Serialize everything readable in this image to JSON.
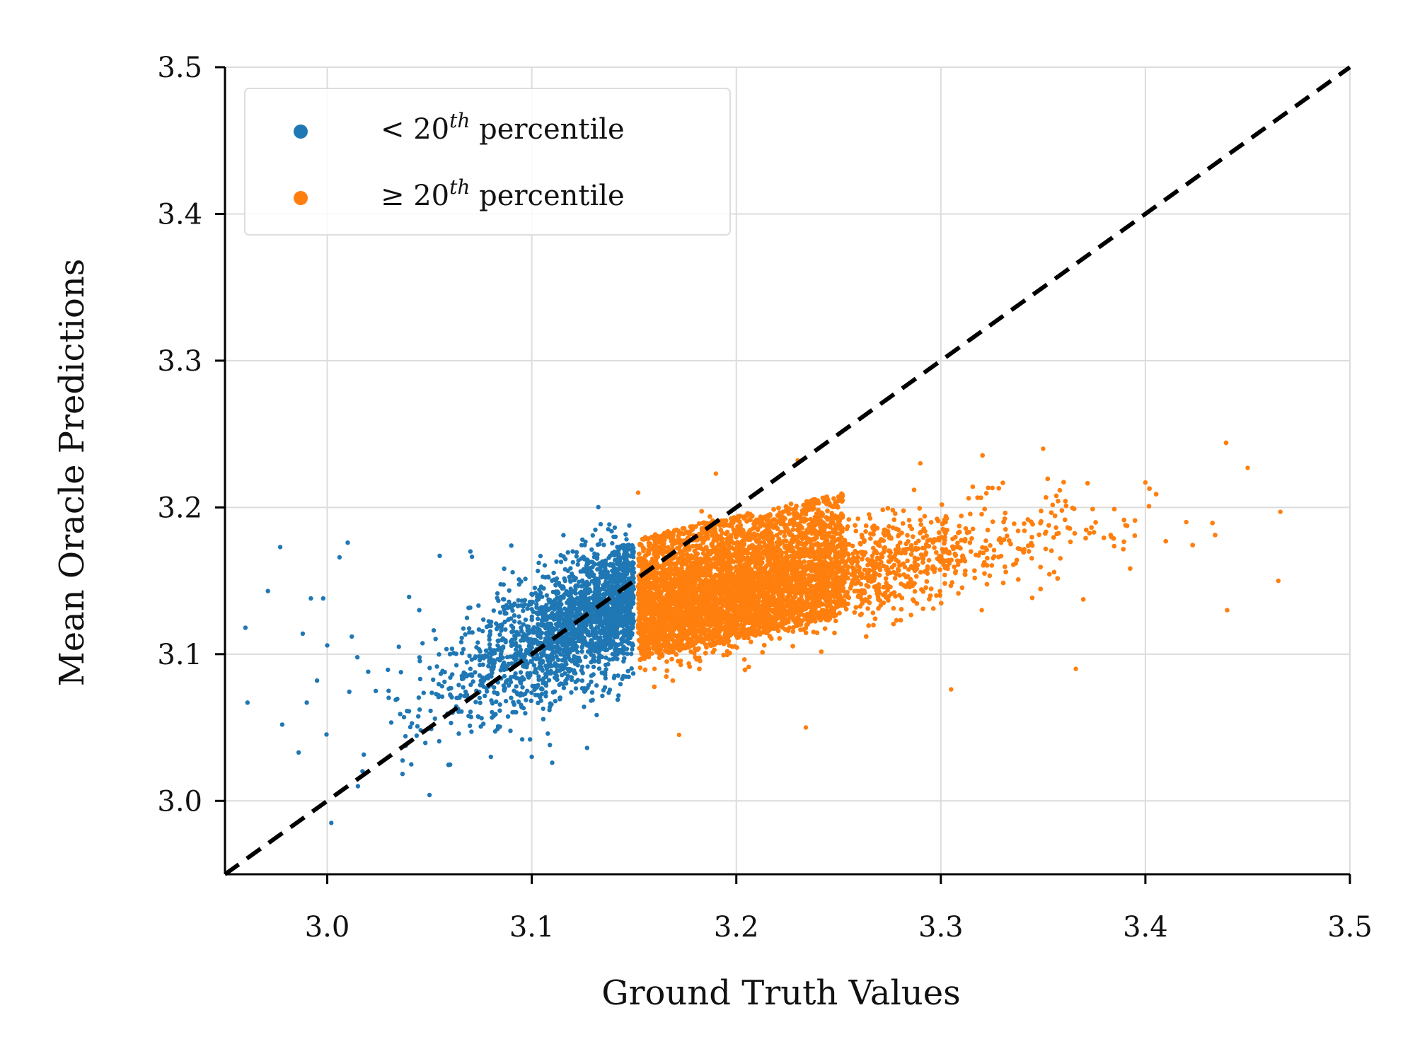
{
  "chart_data": {
    "type": "scatter",
    "title": "",
    "xlabel": "Ground Truth Values",
    "ylabel": "Mean Oracle Predictions",
    "xlim": [
      2.95,
      3.5
    ],
    "ylim": [
      2.95,
      3.5
    ],
    "xticks": [
      "3.0",
      "3.1",
      "3.2",
      "3.3",
      "3.4",
      "3.5"
    ],
    "yticks": [
      "3.0",
      "3.1",
      "3.2",
      "3.3",
      "3.4",
      "3.5"
    ],
    "grid": true,
    "legend_position": "top-left",
    "reference_line": {
      "style": "dashed",
      "color": "#000000",
      "from": [
        2.95,
        2.95
      ],
      "to": [
        3.5,
        3.5
      ]
    },
    "series": [
      {
        "name": "< 20th percentile",
        "color": "#1f77b4",
        "description": "x from about 2.96 to 3.15",
        "points": [
          [
            2.96,
            3.118
          ],
          [
            2.961,
            3.067
          ],
          [
            2.971,
            3.143
          ],
          [
            2.977,
            3.173
          ],
          [
            2.978,
            3.052
          ],
          [
            2.986,
            3.033
          ],
          [
            2.988,
            3.114
          ],
          [
            2.99,
            3.067
          ],
          [
            2.992,
            3.138
          ],
          [
            2.995,
            3.082
          ],
          [
            2.998,
            3.138
          ],
          [
            3.0,
            3.106
          ],
          [
            3.002,
            2.985
          ],
          [
            3.006,
            3.166
          ],
          [
            3.01,
            3.176
          ],
          [
            3.012,
            3.112
          ],
          [
            3.015,
            3.01
          ],
          [
            3.02,
            3.088
          ],
          [
            3.03,
            3.075
          ],
          [
            3.035,
            3.105
          ],
          [
            3.04,
            3.139
          ],
          [
            3.045,
            3.13
          ],
          [
            3.05,
            3.004
          ],
          [
            3.055,
            3.167
          ],
          [
            3.06,
            3.1
          ],
          [
            3.07,
            3.17
          ],
          [
            3.08,
            3.03
          ],
          [
            3.09,
            3.174
          ],
          [
            3.1,
            3.03
          ],
          [
            3.11,
            3.026
          ],
          [
            3.12,
            3.17
          ],
          [
            3.14,
            3.18
          ]
        ]
      },
      {
        "name": "≥ 20th percentile",
        "color": "#ff7f0e",
        "description": "x from about 3.15 to 3.47",
        "points": [
          [
            3.152,
            3.21
          ],
          [
            3.16,
            3.09
          ],
          [
            3.172,
            3.045
          ],
          [
            3.19,
            3.223
          ],
          [
            3.2,
            3.17
          ],
          [
            3.215,
            3.118
          ],
          [
            3.23,
            3.232
          ],
          [
            3.234,
            3.05
          ],
          [
            3.25,
            3.16
          ],
          [
            3.29,
            3.23
          ],
          [
            3.305,
            3.076
          ],
          [
            3.32,
            3.13
          ],
          [
            3.35,
            3.24
          ],
          [
            3.366,
            3.09
          ],
          [
            3.4,
            3.217
          ],
          [
            3.42,
            3.19
          ],
          [
            3.44,
            3.13
          ],
          [
            3.45,
            3.227
          ],
          [
            3.465,
            3.15
          ],
          [
            3.466,
            3.197
          ]
        ]
      }
    ],
    "legend_entries": [
      {
        "prefix": "<",
        "number": "20",
        "superscript": "th",
        "text": "percentile"
      },
      {
        "prefix": "≥",
        "number": "20",
        "superscript": "th",
        "text": "percentile"
      }
    ]
  }
}
